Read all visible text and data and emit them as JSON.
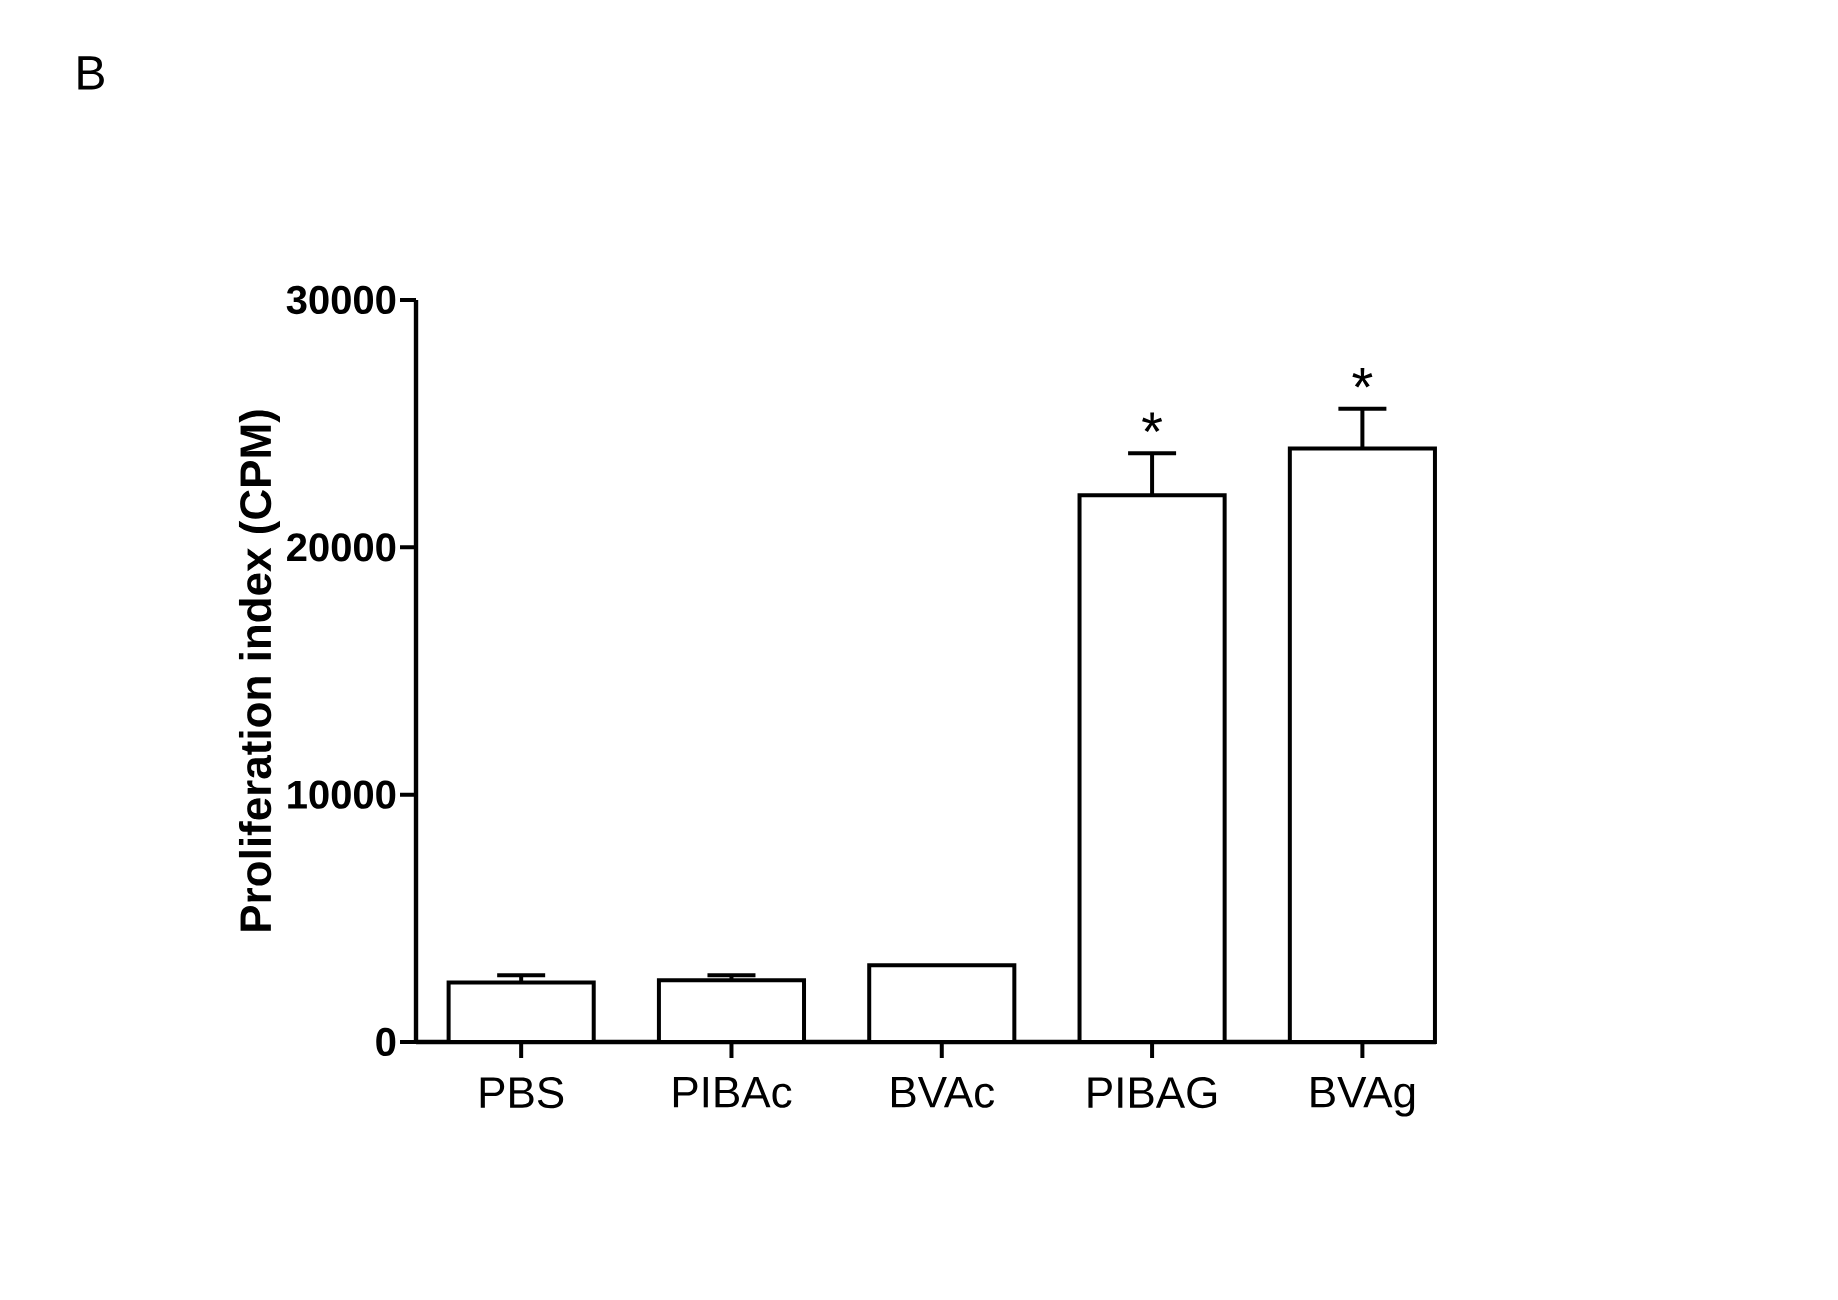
{
  "chart_data": {
    "type": "bar",
    "ylabel": "Proliferation index (CPM)",
    "categories": [
      "PBS",
      "PIBAc",
      "BVAc",
      "PIBAG",
      "BVAg"
    ],
    "values": [
      2400,
      2500,
      3100,
      22100,
      24000
    ],
    "errors": [
      300,
      200,
      null,
      1700,
      1600
    ],
    "colors": [
      "#000000",
      "#000000",
      "#000000",
      "#000000",
      "#000000"
    ],
    "ylim": [
      0,
      30000
    ],
    "yticks": [
      0,
      10000,
      20000,
      30000
    ],
    "grid": false,
    "annotations": [
      "B",
      {
        "text": "*",
        "x": "PIBAG",
        "y": 23800
      },
      {
        "text": "*",
        "x": "BVAg",
        "y": 25600
      }
    ]
  }
}
